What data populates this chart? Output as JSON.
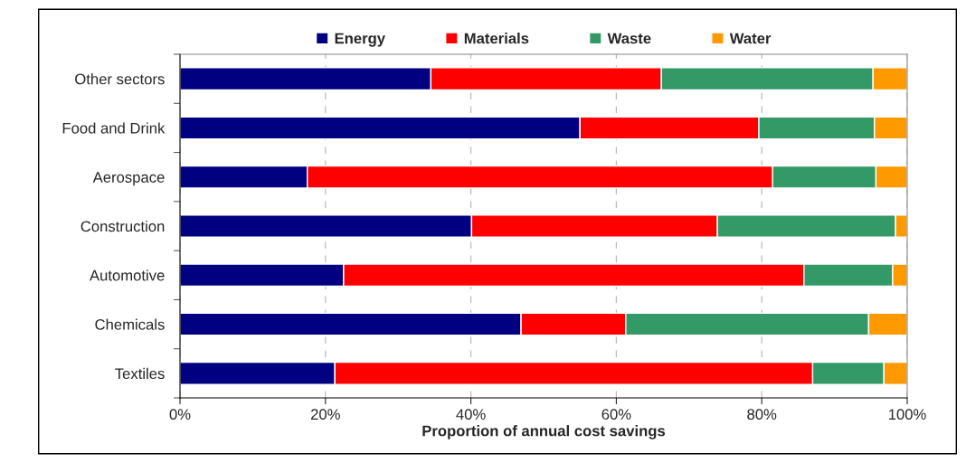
{
  "chart_data": {
    "type": "bar",
    "orientation": "horizontal",
    "stacked": true,
    "xlabel": "Proportion of annual cost savings",
    "categories": [
      "Other sectors",
      "Food and Drink",
      "Aerospace",
      "Construction",
      "Automotive",
      "Chemicals",
      "Textiles"
    ],
    "series": [
      {
        "name": "Energy",
        "color": "#000080",
        "values": [
          34.5,
          55.0,
          17.5,
          40.1,
          22.5,
          46.9,
          21.3
        ]
      },
      {
        "name": "Materials",
        "color": "#ff0000",
        "values": [
          31.7,
          24.6,
          64.0,
          33.8,
          63.3,
          14.4,
          65.7
        ]
      },
      {
        "name": "Waste",
        "color": "#339966",
        "values": [
          29.1,
          15.9,
          14.2,
          24.5,
          12.2,
          33.4,
          9.8
        ]
      },
      {
        "name": "Water",
        "color": "#ff9900",
        "values": [
          4.7,
          4.5,
          4.3,
          1.6,
          2.0,
          5.3,
          3.2
        ]
      }
    ],
    "xlim": [
      0,
      100
    ],
    "xticks": [
      {
        "value": 0,
        "label": "0%"
      },
      {
        "value": 20,
        "label": "20%"
      },
      {
        "value": 40,
        "label": "40%"
      },
      {
        "value": 60,
        "label": "60%"
      },
      {
        "value": 80,
        "label": "80%"
      },
      {
        "value": 100,
        "label": "100%"
      }
    ],
    "grid": "x",
    "legend": "top"
  }
}
